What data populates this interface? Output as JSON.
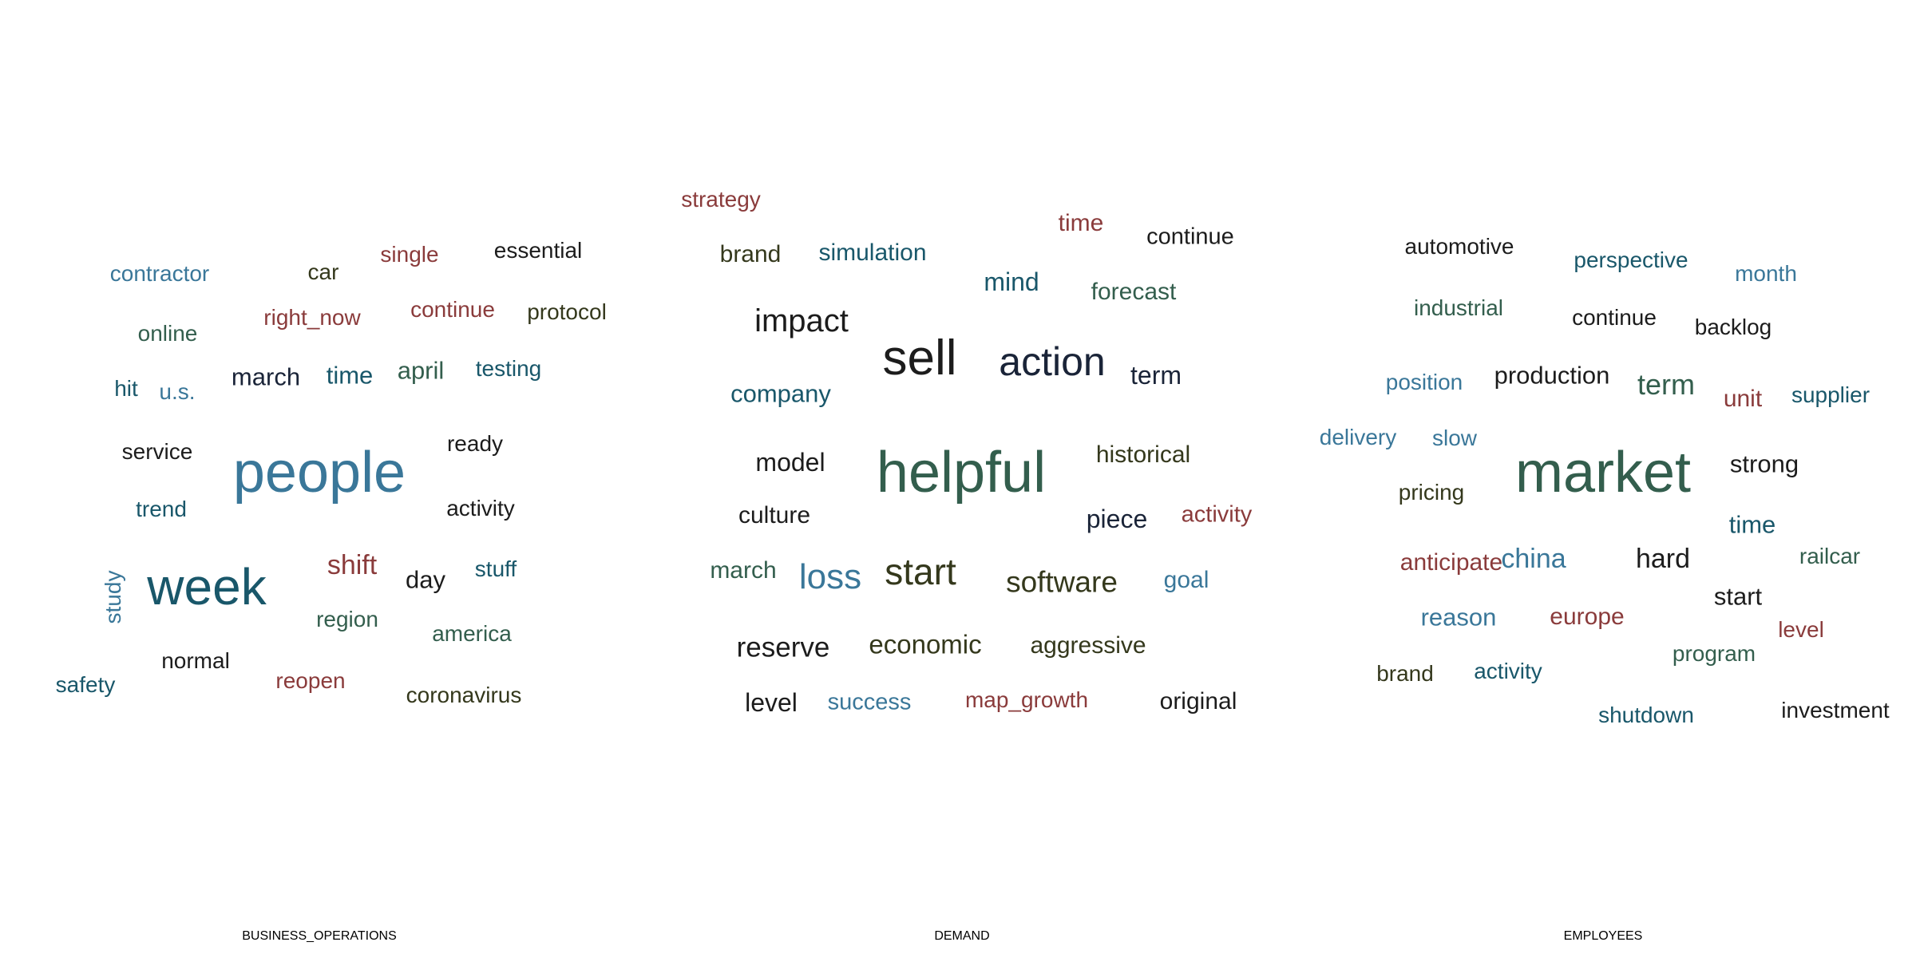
{
  "palette": {
    "blue": "#3a7799",
    "dark_green": "#335e4d",
    "teal": "#19576a",
    "red": "#8a3b3b",
    "olive": "#34381c",
    "black": "#1c1c1c",
    "navy": "#1a2438"
  },
  "clouds": [
    {
      "title": "BUSINESS_OPERATIONS",
      "words": [
        {
          "text": "people",
          "size": 72,
          "color": "blue"
        },
        {
          "text": "week",
          "size": 64,
          "color": "teal"
        },
        {
          "text": "shift",
          "size": 34,
          "color": "red"
        },
        {
          "text": "march",
          "size": 31,
          "color": "navy"
        },
        {
          "text": "time",
          "size": 31,
          "color": "teal"
        },
        {
          "text": "april",
          "size": 31,
          "color": "dark_green"
        },
        {
          "text": "day",
          "size": 31,
          "color": "black"
        },
        {
          "text": "contractor",
          "size": 28,
          "color": "blue"
        },
        {
          "text": "car",
          "size": 28,
          "color": "olive"
        },
        {
          "text": "single",
          "size": 28,
          "color": "red"
        },
        {
          "text": "essential",
          "size": 28,
          "color": "black"
        },
        {
          "text": "right_now",
          "size": 28,
          "color": "red"
        },
        {
          "text": "continue",
          "size": 28,
          "color": "red"
        },
        {
          "text": "protocol",
          "size": 28,
          "color": "olive"
        },
        {
          "text": "online",
          "size": 28,
          "color": "dark_green"
        },
        {
          "text": "hit",
          "size": 28,
          "color": "teal"
        },
        {
          "text": "u.s.",
          "size": 28,
          "color": "blue"
        },
        {
          "text": "testing",
          "size": 28,
          "color": "teal"
        },
        {
          "text": "service",
          "size": 28,
          "color": "black"
        },
        {
          "text": "ready",
          "size": 28,
          "color": "black"
        },
        {
          "text": "trend",
          "size": 28,
          "color": "teal"
        },
        {
          "text": "activity",
          "size": 28,
          "color": "black"
        },
        {
          "text": "stuff",
          "size": 28,
          "color": "teal"
        },
        {
          "text": "study",
          "size": 28,
          "color": "blue"
        },
        {
          "text": "region",
          "size": 28,
          "color": "dark_green"
        },
        {
          "text": "america",
          "size": 28,
          "color": "dark_green"
        },
        {
          "text": "normal",
          "size": 28,
          "color": "black"
        },
        {
          "text": "reopen",
          "size": 28,
          "color": "red"
        },
        {
          "text": "safety",
          "size": 28,
          "color": "teal"
        },
        {
          "text": "coronavirus",
          "size": 28,
          "color": "olive"
        }
      ]
    },
    {
      "title": "DEMAND",
      "words": [
        {
          "text": "helpful",
          "size": 72,
          "color": "dark_green"
        },
        {
          "text": "sell",
          "size": 62,
          "color": "black"
        },
        {
          "text": "action",
          "size": 50,
          "color": "navy"
        },
        {
          "text": "start",
          "size": 46,
          "color": "olive"
        },
        {
          "text": "loss",
          "size": 44,
          "color": "blue"
        },
        {
          "text": "impact",
          "size": 40,
          "color": "black"
        },
        {
          "text": "software",
          "size": 37,
          "color": "olive"
        },
        {
          "text": "reserve",
          "size": 35,
          "color": "black"
        },
        {
          "text": "economic",
          "size": 33,
          "color": "olive"
        },
        {
          "text": "term",
          "size": 32,
          "color": "navy"
        },
        {
          "text": "piece",
          "size": 32,
          "color": "navy"
        },
        {
          "text": "mind",
          "size": 32,
          "color": "teal"
        },
        {
          "text": "model",
          "size": 32,
          "color": "black"
        },
        {
          "text": "level",
          "size": 32,
          "color": "black"
        },
        {
          "text": "company",
          "size": 31,
          "color": "teal"
        },
        {
          "text": "historical",
          "size": 30,
          "color": "olive"
        },
        {
          "text": "aggressive",
          "size": 30,
          "color": "olive"
        },
        {
          "text": "strategy",
          "size": 28,
          "color": "red"
        },
        {
          "text": "brand",
          "size": 30,
          "color": "olive"
        },
        {
          "text": "simulation",
          "size": 30,
          "color": "teal"
        },
        {
          "text": "time",
          "size": 30,
          "color": "red"
        },
        {
          "text": "continue",
          "size": 29,
          "color": "black"
        },
        {
          "text": "forecast",
          "size": 30,
          "color": "dark_green"
        },
        {
          "text": "culture",
          "size": 30,
          "color": "black"
        },
        {
          "text": "activity",
          "size": 29,
          "color": "red"
        },
        {
          "text": "march",
          "size": 30,
          "color": "dark_green"
        },
        {
          "text": "goal",
          "size": 30,
          "color": "blue"
        },
        {
          "text": "success",
          "size": 29,
          "color": "blue"
        },
        {
          "text": "map_growth",
          "size": 28,
          "color": "red"
        },
        {
          "text": "original",
          "size": 30,
          "color": "black"
        }
      ]
    },
    {
      "title": "EMPLOYEES",
      "words": [
        {
          "text": "market",
          "size": 72,
          "color": "dark_green"
        },
        {
          "text": "term",
          "size": 36,
          "color": "dark_green"
        },
        {
          "text": "china",
          "size": 34,
          "color": "blue"
        },
        {
          "text": "hard",
          "size": 34,
          "color": "black"
        },
        {
          "text": "production",
          "size": 31,
          "color": "black"
        },
        {
          "text": "strong",
          "size": 31,
          "color": "black"
        },
        {
          "text": "time",
          "size": 31,
          "color": "teal"
        },
        {
          "text": "reason",
          "size": 31,
          "color": "blue"
        },
        {
          "text": "europe",
          "size": 30,
          "color": "red"
        },
        {
          "text": "start",
          "size": 31,
          "color": "black"
        },
        {
          "text": "anticipate",
          "size": 30,
          "color": "red"
        },
        {
          "text": "unit",
          "size": 30,
          "color": "red"
        },
        {
          "text": "automotive",
          "size": 28,
          "color": "black"
        },
        {
          "text": "perspective",
          "size": 28,
          "color": "teal"
        },
        {
          "text": "month",
          "size": 28,
          "color": "blue"
        },
        {
          "text": "industrial",
          "size": 28,
          "color": "dark_green"
        },
        {
          "text": "continue",
          "size": 28,
          "color": "black"
        },
        {
          "text": "backlog",
          "size": 28,
          "color": "black"
        },
        {
          "text": "position",
          "size": 28,
          "color": "blue"
        },
        {
          "text": "supplier",
          "size": 28,
          "color": "teal"
        },
        {
          "text": "delivery",
          "size": 28,
          "color": "blue"
        },
        {
          "text": "slow",
          "size": 28,
          "color": "blue"
        },
        {
          "text": "pricing",
          "size": 28,
          "color": "olive"
        },
        {
          "text": "railcar",
          "size": 28,
          "color": "dark_green"
        },
        {
          "text": "level",
          "size": 28,
          "color": "red"
        },
        {
          "text": "program",
          "size": 28,
          "color": "dark_green"
        },
        {
          "text": "brand",
          "size": 28,
          "color": "olive"
        },
        {
          "text": "activity",
          "size": 28,
          "color": "teal"
        },
        {
          "text": "shutdown",
          "size": 28,
          "color": "teal"
        },
        {
          "text": "investment",
          "size": 28,
          "color": "black"
        }
      ]
    }
  ]
}
